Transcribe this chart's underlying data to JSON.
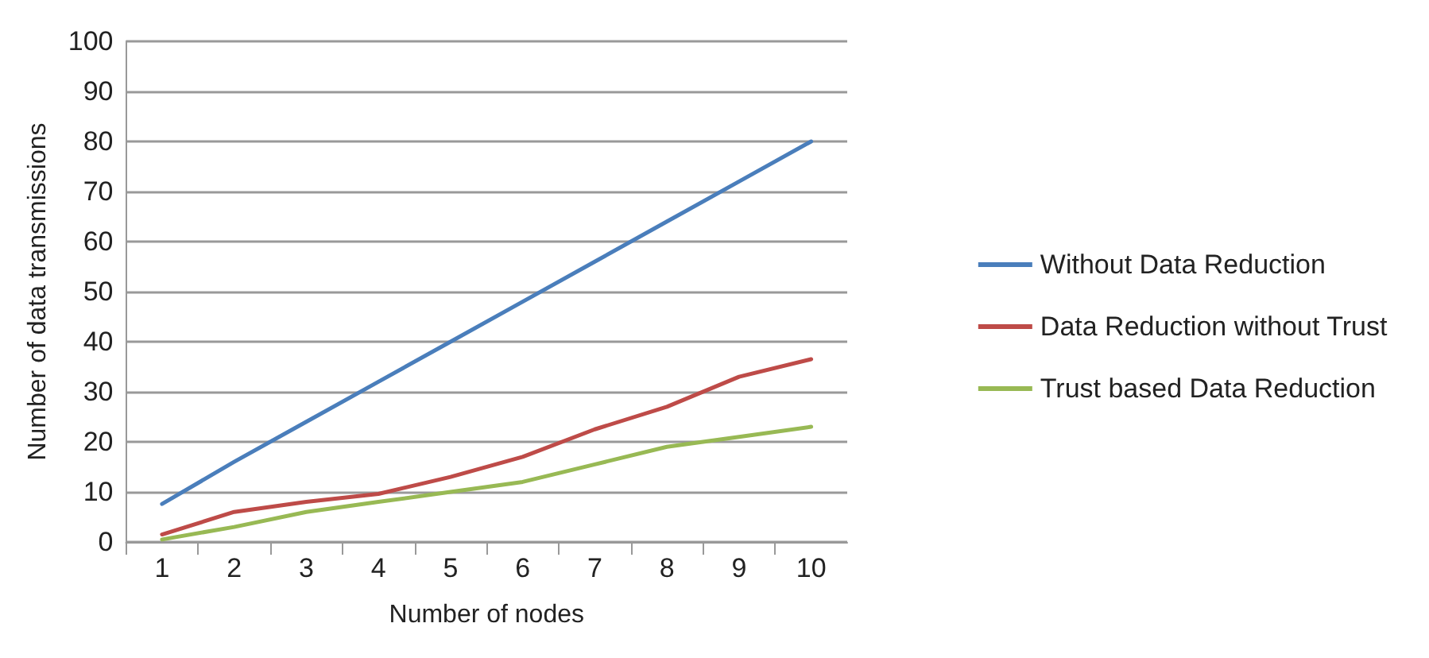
{
  "chart_data": {
    "type": "line",
    "xlabel": "Number of nodes",
    "ylabel": "Number of data transmissions",
    "categories": [
      "1",
      "2",
      "3",
      "4",
      "5",
      "6",
      "7",
      "8",
      "9",
      "10"
    ],
    "series": [
      {
        "name": "Without Data Reduction",
        "color": "#4a7ebb",
        "values": [
          7.6,
          16,
          24,
          32,
          40,
          48,
          56,
          64,
          72,
          80
        ]
      },
      {
        "name": "Data Reduction without Trust",
        "color": "#be4b48",
        "values": [
          1.5,
          6,
          8,
          9.6,
          13,
          17,
          22.5,
          27,
          33,
          36.5
        ]
      },
      {
        "name": "Trust based Data Reduction",
        "color": "#98b954",
        "values": [
          0.5,
          3,
          6,
          8,
          10,
          12,
          15.5,
          19,
          21,
          23
        ]
      }
    ],
    "ylim": [
      0,
      100
    ],
    "yticks": [
      0,
      10,
      20,
      30,
      40,
      50,
      60,
      70,
      80,
      90,
      100
    ],
    "grid": "y",
    "legend": "right",
    "marker": "none",
    "line_style": "solid"
  }
}
